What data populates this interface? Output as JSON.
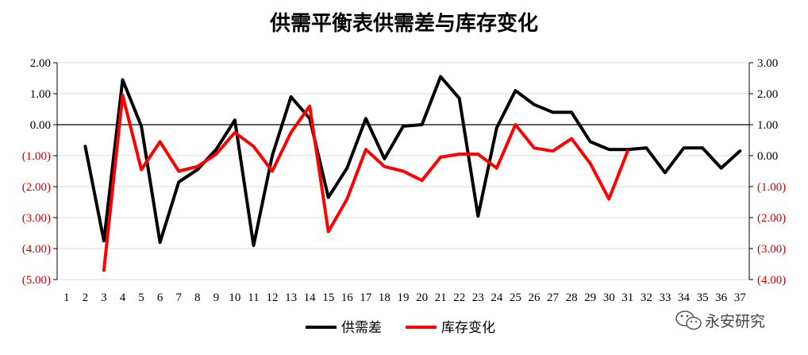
{
  "chart_data": {
    "type": "line",
    "title": "供需平衡表供需差与库存变化",
    "x": [
      "1",
      "2",
      "3",
      "4",
      "5",
      "6",
      "7",
      "8",
      "9",
      "10",
      "11",
      "12",
      "13",
      "14",
      "15",
      "16",
      "17",
      "18",
      "19",
      "20",
      "21",
      "22",
      "23",
      "24",
      "25",
      "26",
      "27",
      "28",
      "29",
      "30",
      "31",
      "32",
      "33",
      "34",
      "35",
      "36",
      "37"
    ],
    "y_left": {
      "range": [
        -5,
        2
      ],
      "ticks": [
        2,
        1,
        0,
        -1,
        -2,
        -3,
        -4,
        -5
      ],
      "tick_labels": [
        "2.00",
        "1.00",
        "0.00",
        "(1.00)",
        "(2.00)",
        "(3.00)",
        "(4.00)",
        "(5.00)"
      ]
    },
    "y_right": {
      "range": [
        -4,
        3
      ],
      "ticks": [
        3,
        2,
        1,
        0,
        -1,
        -2,
        -3,
        -4
      ],
      "tick_labels": [
        "3.00",
        "2.00",
        "1.00",
        "0.00",
        "(1.00)",
        "(2.00)",
        "(3.00)",
        "(4.00)"
      ]
    },
    "grid": "horizontal",
    "legend_position": "bottom",
    "series": [
      {
        "name": "供需差",
        "axis": "left",
        "color": "#000000",
        "values": [
          null,
          -0.7,
          -3.75,
          1.45,
          -0.05,
          -3.8,
          -1.85,
          -1.45,
          -0.8,
          0.15,
          -3.9,
          -1.0,
          0.9,
          0.2,
          -2.35,
          -1.4,
          0.2,
          -1.1,
          -0.05,
          0.0,
          1.55,
          0.85,
          -2.95,
          -0.1,
          1.1,
          0.65,
          0.4,
          0.4,
          -0.55,
          -0.8,
          -0.8,
          -0.75,
          -1.55,
          -0.75,
          -0.75,
          -1.4,
          -0.85
        ]
      },
      {
        "name": "库存变化",
        "axis": "right",
        "color": "#ff0000",
        "values": [
          null,
          null,
          -3.7,
          1.95,
          -0.45,
          0.45,
          -0.5,
          -0.35,
          0.05,
          0.75,
          0.3,
          -0.5,
          0.75,
          1.6,
          -2.45,
          -1.4,
          0.2,
          -0.35,
          -0.5,
          -0.8,
          -0.05,
          0.05,
          0.05,
          -0.4,
          1.0,
          0.25,
          0.15,
          0.55,
          -0.25,
          -1.4,
          0.15,
          null,
          null,
          null,
          null,
          null,
          null
        ]
      }
    ]
  },
  "legend": [
    {
      "label": "供需差",
      "color": "#000000"
    },
    {
      "label": "库存变化",
      "color": "#ff0000"
    }
  ],
  "watermark": {
    "text": "永安研究",
    "icon": "wechat-icon"
  },
  "colors": {
    "negative_tick": "#cc0000",
    "positive_tick": "#000000",
    "grid": "#d9d9d9"
  }
}
